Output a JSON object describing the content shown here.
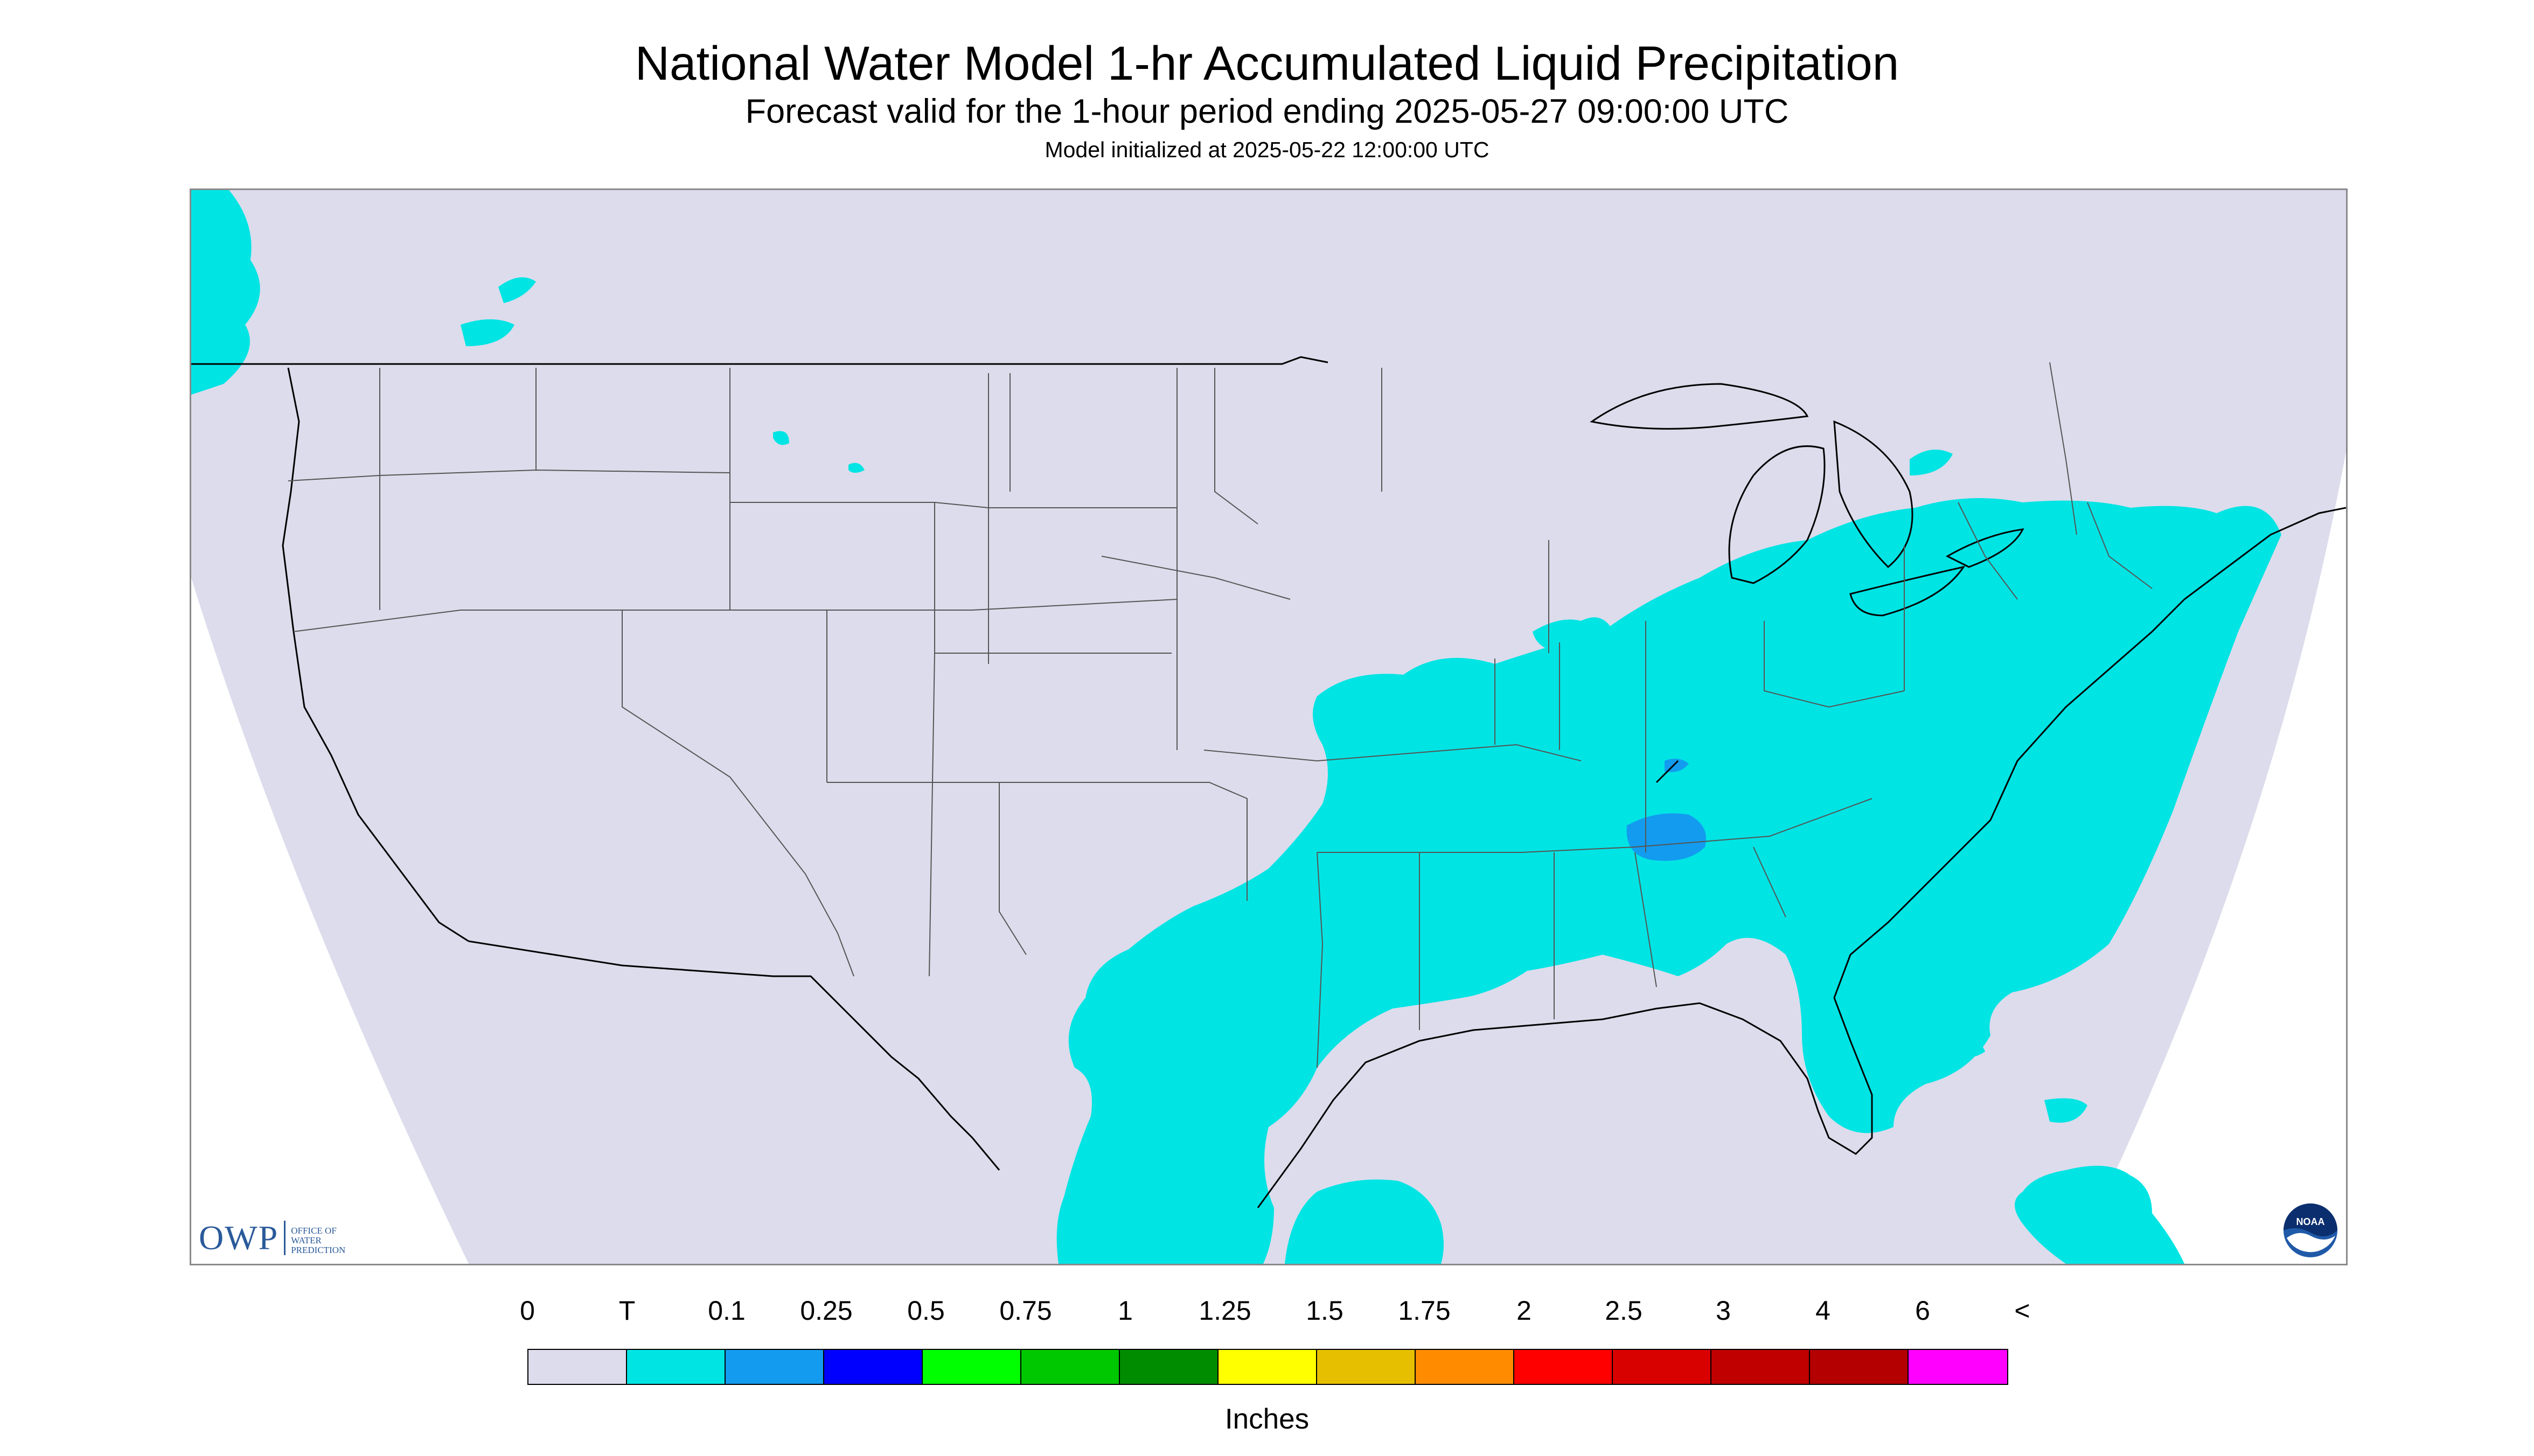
{
  "header": {
    "title": "National Water Model 1-hr Accumulated Liquid Precipitation",
    "subtitle": "Forecast valid for the 1-hour period ending 2025-05-27 09:00:00 UTC",
    "init_line": "Model initialized at 2025-05-22 12:00:00 UTC"
  },
  "map": {
    "background_color": "#dcdcec",
    "boundary_color": "#555555",
    "precip_color": "#00e4e4",
    "precip_color_heavy": "#139bef",
    "regions_with_precip": [
      "Southeast US",
      "Mid-Atlantic",
      "Ohio Valley",
      "Lower Mississippi Valley",
      "East Texas / Texas coast",
      "Northern Gulf of Mexico",
      "Western Atlantic",
      "Pacific Northwest coast"
    ]
  },
  "logos": {
    "owp_text": "OWP",
    "owp_subtext": [
      "OFFICE OF",
      "WATER",
      "PREDICTION"
    ],
    "noaa_text": "NOAA"
  },
  "legend": {
    "tick_labels": [
      "0",
      "T",
      "0.1",
      "0.25",
      "0.5",
      "0.75",
      "1",
      "1.25",
      "1.5",
      "1.75",
      "2",
      "2.5",
      "3",
      "4",
      "6",
      "<"
    ],
    "colors": [
      "#dcdcec",
      "#00e4e4",
      "#139bef",
      "#0000ff",
      "#00ff00",
      "#00c800",
      "#008c00",
      "#ffff00",
      "#e6c000",
      "#ff8c00",
      "#ff0000",
      "#d90000",
      "#c00000",
      "#b40000",
      "#ff00ff",
      "#9a55c8"
    ],
    "units": "Inches"
  }
}
